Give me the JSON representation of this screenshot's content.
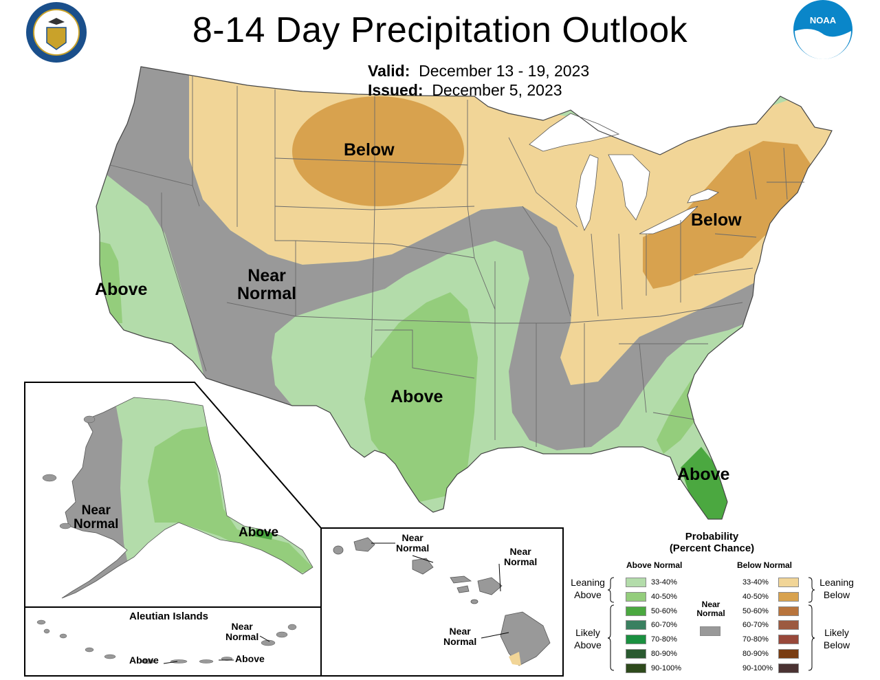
{
  "title": "8-14 Day Precipitation Outlook",
  "valid_label": "Valid:",
  "valid_value": "December 13 - 19, 2023",
  "issued_label": "Issued:",
  "issued_value": "December 5, 2023",
  "logos": {
    "left": "department-of-commerce-seal",
    "right": "noaa-logo",
    "noaa_text": "NOAA"
  },
  "colors": {
    "near_normal": "#999999",
    "above_33_40": "#b3dcaa",
    "above_40_50": "#94cd7c",
    "above_50_60": "#4ba840",
    "below_33_40": "#f1d597",
    "below_40_50": "#d8a24e",
    "state_border": "#555555",
    "lakes": "#ffffff"
  },
  "map_labels": {
    "northern_plains": "Below",
    "northeast": "Below",
    "west_near_normal": "Near\nNormal",
    "california": "Above",
    "southern_plains": "Above",
    "florida": "Above"
  },
  "alaska": {
    "near_normal": "Near\nNormal",
    "above": "Above"
  },
  "aleutian": {
    "title": "Aleutian Islands",
    "near_normal": "Near\nNormal",
    "above_1": "Above",
    "above_2": "Above"
  },
  "hawaii": {
    "near_normal_1": "Near\nNormal",
    "near_normal_2": "Near\nNormal",
    "near_normal_3": "Near\nNormal"
  },
  "legend": {
    "title": "Probability\n(Percent Chance)",
    "above_header": "Above Normal",
    "below_header": "Below Normal",
    "near_normal": "Near\nNormal",
    "leaning_above": "Leaning\nAbove",
    "likely_above": "Likely\nAbove",
    "leaning_below": "Leaning\nBelow",
    "likely_below": "Likely\nBelow",
    "above_rows": [
      {
        "label": "33-40%",
        "color": "#b3dcaa"
      },
      {
        "label": "40-50%",
        "color": "#94cd7c"
      },
      {
        "label": "50-60%",
        "color": "#4ba840"
      },
      {
        "label": "60-70%",
        "color": "#3a8060"
      },
      {
        "label": "70-80%",
        "color": "#1a9040"
      },
      {
        "label": "80-90%",
        "color": "#2a5a30"
      },
      {
        "label": "90-100%",
        "color": "#2e4a1c"
      }
    ],
    "below_rows": [
      {
        "label": "33-40%",
        "color": "#f1d597"
      },
      {
        "label": "40-50%",
        "color": "#d8a24e"
      },
      {
        "label": "50-60%",
        "color": "#b8743c"
      },
      {
        "label": "60-70%",
        "color": "#9c5a40"
      },
      {
        "label": "70-80%",
        "color": "#98483a"
      },
      {
        "label": "80-90%",
        "color": "#7a3d12"
      },
      {
        "label": "90-100%",
        "color": "#4a3232"
      }
    ],
    "near_color": "#999999"
  }
}
